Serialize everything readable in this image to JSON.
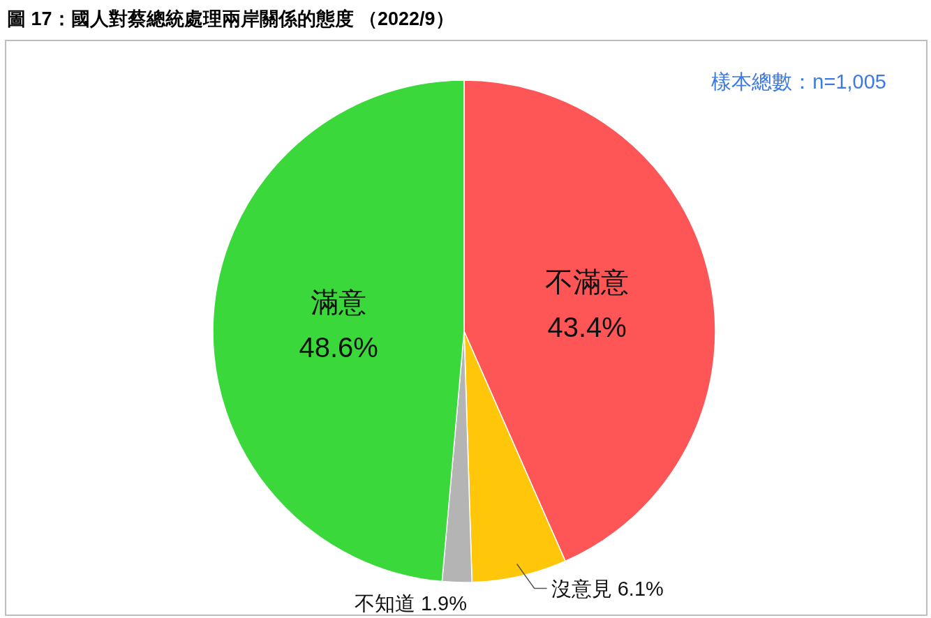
{
  "chart_data": {
    "type": "pie",
    "title": "圖 17：國人對蔡總統處理兩岸關係的態度 （2022/9）",
    "categories": [
      "不滿意",
      "沒意見",
      "不知道",
      "滿意"
    ],
    "values": [
      43.4,
      6.1,
      1.9,
      48.6
    ],
    "colors": [
      "#fe5656",
      "#ffc60a",
      "#b4b4b4",
      "#3bd83b"
    ],
    "value_labels": [
      "43.4%",
      "6.1%",
      "1.9%",
      "48.6%"
    ],
    "annotations": [
      "樣本總數：n=1,005"
    ],
    "legend": false
  }
}
